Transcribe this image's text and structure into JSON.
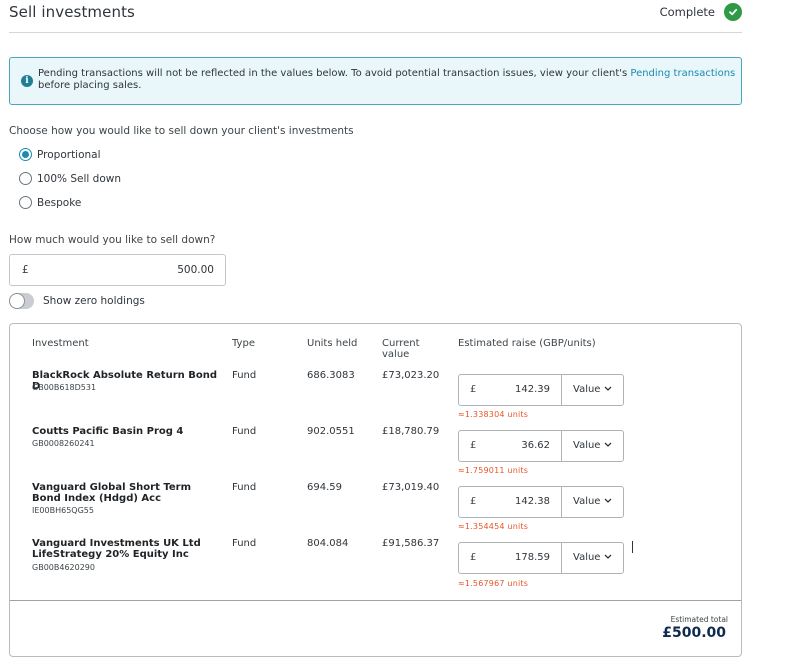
{
  "header": {
    "title": "Sell investments",
    "status": "Complete",
    "status_icon": "check-circle-icon",
    "status_color": "#2e9a45"
  },
  "alert": {
    "icon": "info-icon",
    "text_before": "Pending transactions will not be reflected in the values below. To avoid potential transaction issues, view your client's ",
    "link": "Pending transactions",
    "text_after": " before placing sales."
  },
  "sell_method": {
    "prompt": "Choose how you would like to sell down your client's investments",
    "options": [
      "Proportional",
      "100% Sell down",
      "Bespoke"
    ],
    "selected": "Proportional"
  },
  "amount": {
    "prompt": "How much would you like to sell down?",
    "currency": "£",
    "value": "500.00"
  },
  "zero_holdings": {
    "label": "Show zero holdings",
    "enabled": false
  },
  "table": {
    "columns": [
      "Investment",
      "Type",
      "Units held",
      "Current value",
      "Estimated raise (GBP/units)"
    ],
    "rows": [
      {
        "name": "BlackRock Absolute Return Bond D",
        "isin": "GB00B618D531",
        "type": "Fund",
        "units": "686.3083",
        "value": "£73,023.20",
        "currency": "£",
        "raise": "142.39",
        "mode": "Value",
        "units_note": "≈1.338304 units"
      },
      {
        "name": "Coutts Pacific Basin Prog 4",
        "isin": "GB0008260241",
        "type": "Fund",
        "units": "902.0551",
        "value": "£18,780.79",
        "currency": "£",
        "raise": "36.62",
        "mode": "Value",
        "units_note": "≈1.759011 units"
      },
      {
        "name": "Vanguard Global Short Term Bond Index (Hdgd) Acc",
        "isin": "IE00BH65QG55",
        "type": "Fund",
        "units": "694.59",
        "value": "£73,019.40",
        "currency": "£",
        "raise": "142.38",
        "mode": "Value",
        "units_note": "≈1.354454 units"
      },
      {
        "name": "Vanguard Investments UK Ltd LifeStrategy 20% Equity Inc",
        "isin": "GB00B4620290",
        "type": "Fund",
        "units": "804.084",
        "value": "£91,586.37",
        "currency": "£",
        "raise": "178.59",
        "mode": "Value",
        "units_note": "≈1.567967 units"
      }
    ],
    "total_label": "Estimated total",
    "total_value": "£500.00"
  },
  "colors": {
    "accent": "#1a8cb0",
    "alert_bg": "#e9f6fa",
    "warning_text": "#e8562a",
    "total_text": "#0d2b4e"
  }
}
